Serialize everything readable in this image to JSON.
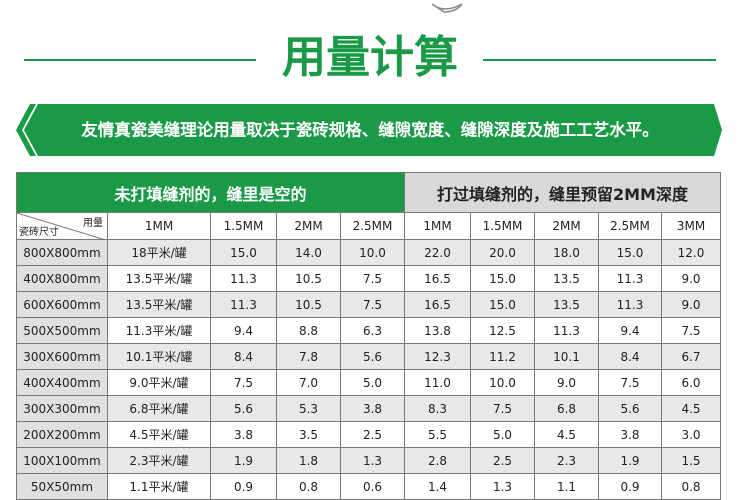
{
  "header": {
    "title": "用量计算",
    "subtitle": "友情真瓷美缝理论用量取决于瓷砖规格、缝隙宽度、缝隙深度及施工工艺水平。"
  },
  "table": {
    "group_headers": [
      "未打填缝剂的，缝里是空的",
      "打过填缝剂的，缝里预留2MM深度"
    ],
    "corner": {
      "top": "用量",
      "bottom": "瓷砖尺寸"
    },
    "columns": [
      "1MM",
      "1.5MM",
      "2MM",
      "2.5MM",
      "1MM",
      "1.5MM",
      "2MM",
      "2.5MM",
      "3MM"
    ],
    "rows": [
      [
        "800X800mm",
        "18平米/罐",
        "15.0",
        "14.0",
        "10.0",
        "22.0",
        "20.0",
        "18.0",
        "15.0",
        "12.0"
      ],
      [
        "400X800mm",
        "13.5平米/罐",
        "11.3",
        "10.5",
        "7.5",
        "16.5",
        "15.0",
        "13.5",
        "11.3",
        "9.0"
      ],
      [
        "600X600mm",
        "13.5平米/罐",
        "11.3",
        "10.5",
        "7.5",
        "16.5",
        "15.0",
        "13.5",
        "11.3",
        "9.0"
      ],
      [
        "500X500mm",
        "11.3平米/罐",
        "9.4",
        "8.8",
        "6.3",
        "13.8",
        "12.5",
        "11.3",
        "9.4",
        "7.5"
      ],
      [
        "300X600mm",
        "10.1平米/罐",
        "8.4",
        "7.8",
        "5.6",
        "12.3",
        "11.2",
        "10.1",
        "8.4",
        "6.7"
      ],
      [
        "400X400mm",
        "9.0平米/罐",
        "7.5",
        "7.0",
        "5.0",
        "11.0",
        "10.0",
        "9.0",
        "7.5",
        "6.0"
      ],
      [
        "300X300mm",
        "6.8平米/罐",
        "5.6",
        "5.3",
        "3.8",
        "8.3",
        "7.5",
        "6.8",
        "5.6",
        "4.5"
      ],
      [
        "200X200mm",
        "4.5平米/罐",
        "3.8",
        "3.5",
        "2.5",
        "5.5",
        "5.0",
        "4.5",
        "3.8",
        "3.0"
      ],
      [
        "100X100mm",
        "2.3平米/罐",
        "1.9",
        "1.8",
        "1.3",
        "2.8",
        "2.5",
        "2.3",
        "1.9",
        "1.5"
      ],
      [
        "50X50mm",
        "1.1平米/罐",
        "0.9",
        "0.8",
        "0.6",
        "1.4",
        "1.3",
        "1.1",
        "0.9",
        "0.8"
      ]
    ]
  }
}
